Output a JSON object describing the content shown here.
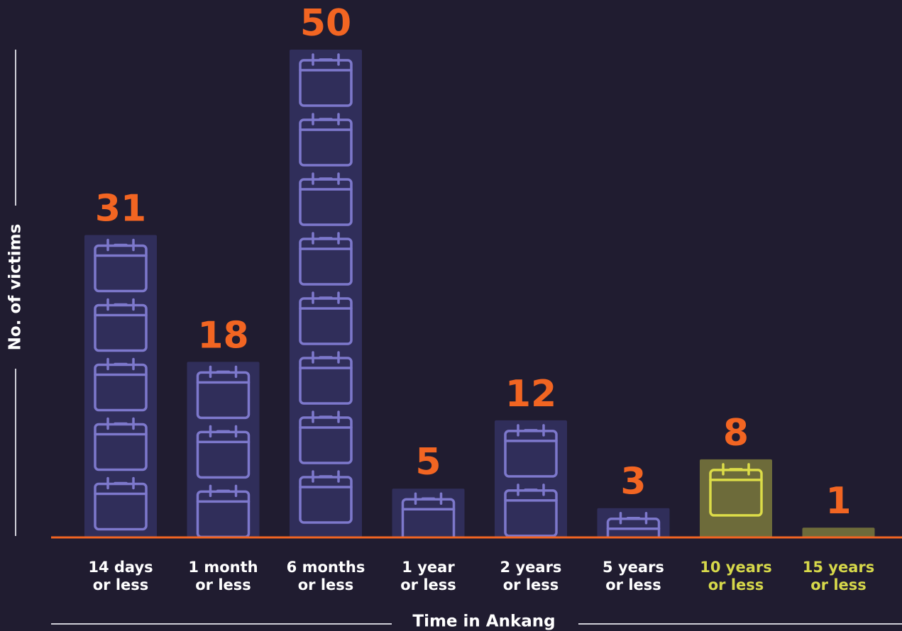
{
  "chart_data": {
    "type": "bar",
    "y_label": "No. of victims",
    "x_label": "Time in Ankang",
    "categories": [
      "14 days\nor less",
      "1 month\nor less",
      "6 months\nor less",
      "1 year\nor less",
      "2 years\nor less",
      "5 years\nor less",
      "10 years\nor less",
      "15 years\nor less"
    ],
    "values": [
      31,
      18,
      50,
      5,
      12,
      3,
      8,
      1
    ],
    "colors": [
      "#302e5a",
      "#302e5a",
      "#302e5a",
      "#302e5a",
      "#302e5a",
      "#302e5a",
      "#6d6b3a",
      "#6d6b3a"
    ],
    "accent_colors": [
      "#ffffff",
      "#ffffff",
      "#ffffff",
      "#ffffff",
      "#ffffff",
      "#ffffff",
      "#d6d84a",
      "#d6d84a"
    ],
    "icon_colors": [
      "#7d78cc",
      "#7d78cc",
      "#7d78cc",
      "#7d78cc",
      "#7d78cc",
      "#7d78cc",
      "#dcdc48",
      "#dcdc48"
    ],
    "value_color": "#f26522",
    "ylim": [
      0,
      50
    ]
  }
}
